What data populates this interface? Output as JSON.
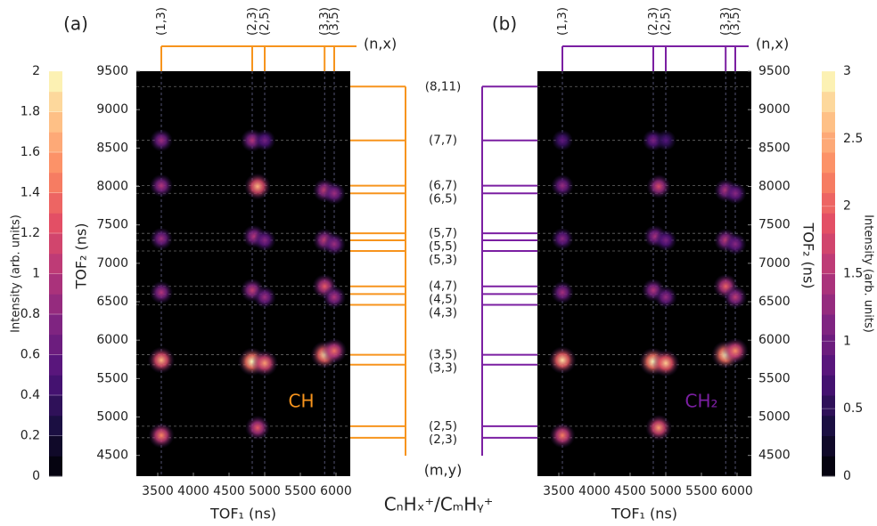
{
  "figure": {
    "species_label": "CₙHₓ⁺/CₘHᵧ⁺",
    "right_markers": {
      "label": "(m,y)",
      "items": [
        {
          "label": "(8,11)",
          "value": 9300
        },
        {
          "label": "(7,7)",
          "value": 8600
        },
        {
          "label": "(6,7)",
          "value": 8010
        },
        {
          "label": "(6,5)",
          "value": 7910
        },
        {
          "label": "(5,7)",
          "value": 7390
        },
        {
          "label": "(5,5)",
          "value": 7300
        },
        {
          "label": "(5,3)",
          "value": 7160
        },
        {
          "label": "(4,7)",
          "value": 6700
        },
        {
          "label": "(4,5)",
          "value": 6600
        },
        {
          "label": "(4,3)",
          "value": 6460
        },
        {
          "label": "(3,5)",
          "value": 5810
        },
        {
          "label": "(3,3)",
          "value": 5680
        },
        {
          "label": "(2,5)",
          "value": 4880
        },
        {
          "label": "(2,3)",
          "value": 4730
        }
      ]
    }
  },
  "chart_data": [
    {
      "type": "heatmap",
      "panel_label": "(a)",
      "annotation": "CH",
      "color": "#f7941d",
      "xlabel": "TOF₁ (ns)",
      "ylabel": "TOF₂ (ns)",
      "colorbar_label": "Intensity (arb. units)",
      "cmap": "magma",
      "xlim": [
        3200,
        6200
      ],
      "xticks": [
        3500,
        4000,
        4500,
        5000,
        5500,
        6000
      ],
      "ylim": [
        4230,
        9500
      ],
      "yticks": [
        4500,
        5000,
        5500,
        6000,
        6500,
        7000,
        7500,
        8000,
        8500,
        9000,
        9500
      ],
      "clim": [
        0,
        2
      ],
      "cticks": [
        0,
        0.2,
        0.4,
        0.6,
        0.8,
        1,
        1.2,
        1.4,
        1.6,
        1.8,
        2
      ],
      "top_markers": {
        "label": "(n,x)",
        "items": [
          {
            "label": "(1,3)",
            "value": 3550
          },
          {
            "label": "(2,3)",
            "value": 4825
          },
          {
            "label": "(2,5)",
            "value": 5000
          },
          {
            "label": "(3,3)",
            "value": 5840
          },
          {
            "label": "(3,5)",
            "value": 5975
          }
        ]
      },
      "spots": [
        [
          3550,
          8600,
          0.9
        ],
        [
          4825,
          8600,
          1.0
        ],
        [
          5000,
          8600,
          0.7
        ],
        [
          3550,
          8010,
          1.0
        ],
        [
          4900,
          8000,
          1.7
        ],
        [
          5840,
          7950,
          1.1
        ],
        [
          5975,
          7910,
          0.9
        ],
        [
          3550,
          7320,
          0.9
        ],
        [
          4850,
          7350,
          1.0
        ],
        [
          5000,
          7300,
          0.8
        ],
        [
          5840,
          7300,
          1.1
        ],
        [
          5975,
          7250,
          0.9
        ],
        [
          3550,
          6620,
          1.0
        ],
        [
          4825,
          6650,
          1.1
        ],
        [
          5000,
          6560,
          0.9
        ],
        [
          5840,
          6700,
          1.3
        ],
        [
          5975,
          6560,
          1.0
        ],
        [
          3550,
          5740,
          1.7
        ],
        [
          4825,
          5720,
          2.0
        ],
        [
          5000,
          5700,
          1.6
        ],
        [
          5840,
          5810,
          1.9
        ],
        [
          5975,
          5860,
          1.4
        ],
        [
          3550,
          4760,
          1.5
        ],
        [
          4900,
          4860,
          1.3
        ]
      ]
    },
    {
      "type": "heatmap",
      "panel_label": "(b)",
      "annotation": "CH₂",
      "color": "#7b1fa2",
      "xlabel": "TOF₁ (ns)",
      "ylabel": "TOF₂ (ns)",
      "colorbar_label": "Intensity (arb. units)",
      "cmap": "magma",
      "xlim": [
        3200,
        6200
      ],
      "xticks": [
        3500,
        4000,
        4500,
        5000,
        5500,
        6000
      ],
      "ylim": [
        4230,
        9500
      ],
      "yticks": [
        4500,
        5000,
        5500,
        6000,
        6500,
        7000,
        7500,
        8000,
        8500,
        9000,
        9500
      ],
      "clim": [
        0,
        3
      ],
      "cticks": [
        0,
        0.5,
        1,
        1.5,
        2,
        2.5,
        3
      ],
      "top_markers": {
        "label": "(n,x)",
        "items": [
          {
            "label": "(1,3)",
            "value": 3550
          },
          {
            "label": "(2,3)",
            "value": 4825
          },
          {
            "label": "(2,5)",
            "value": 5000
          },
          {
            "label": "(3,3)",
            "value": 5840
          },
          {
            "label": "(3,5)",
            "value": 5975
          }
        ]
      },
      "spots": [
        [
          3550,
          8600,
          0.9
        ],
        [
          4825,
          8600,
          1.1
        ],
        [
          5000,
          8600,
          0.8
        ],
        [
          3550,
          8010,
          1.3
        ],
        [
          4900,
          8000,
          1.8
        ],
        [
          5840,
          7950,
          1.5
        ],
        [
          5975,
          7910,
          1.2
        ],
        [
          3550,
          7320,
          1.2
        ],
        [
          4850,
          7350,
          1.4
        ],
        [
          5000,
          7300,
          1.1
        ],
        [
          5840,
          7300,
          1.6
        ],
        [
          5975,
          7250,
          1.2
        ],
        [
          3550,
          6620,
          1.4
        ],
        [
          4825,
          6650,
          1.5
        ],
        [
          5000,
          6560,
          1.3
        ],
        [
          5840,
          6700,
          2.0
        ],
        [
          5975,
          6560,
          1.6
        ],
        [
          3550,
          5740,
          2.8
        ],
        [
          4825,
          5720,
          3.0
        ],
        [
          5000,
          5700,
          2.7
        ],
        [
          5840,
          5810,
          3.0
        ],
        [
          5975,
          5860,
          2.3
        ],
        [
          3550,
          4760,
          2.2
        ],
        [
          4900,
          4860,
          2.4
        ]
      ]
    }
  ]
}
